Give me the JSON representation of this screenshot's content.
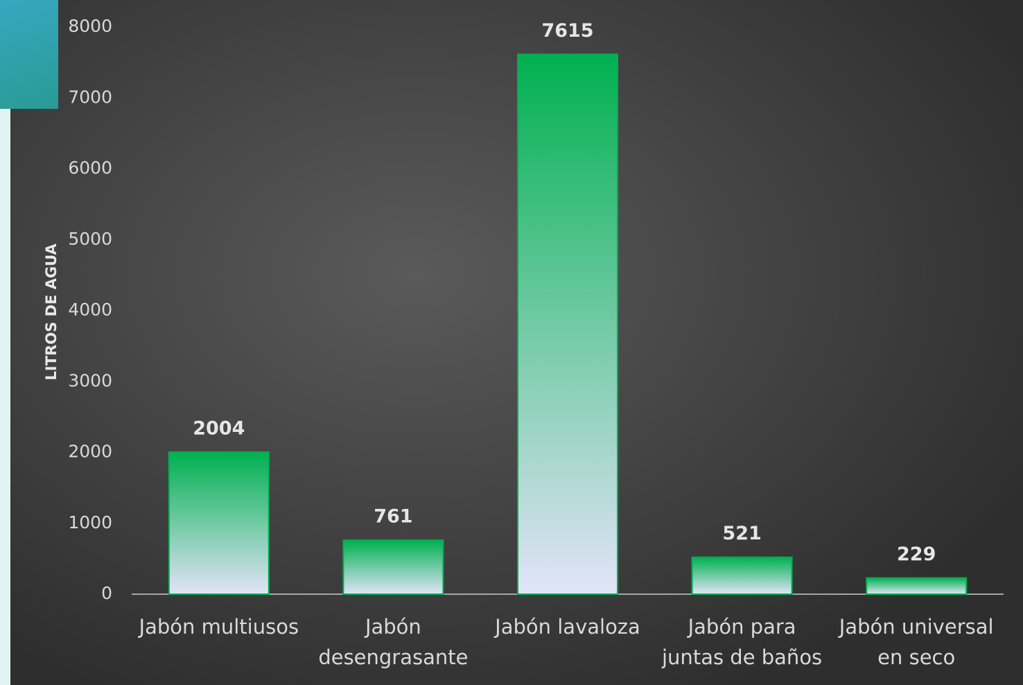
{
  "chart_data": {
    "type": "bar",
    "y_axis_label": "LITROS DE AGUA",
    "categories": [
      "Jabón multiusos",
      "Jabón desengrasante",
      "Jabón lavaloza",
      "Jabón para juntas de baños",
      "Jabón universal en seco"
    ],
    "values": [
      2004,
      761,
      7615,
      521,
      229
    ],
    "color": "#00b050",
    "ylim": [
      0,
      8000
    ],
    "yticks": [
      0,
      1000,
      2000,
      3000,
      4000,
      5000,
      6000,
      7000,
      8000
    ],
    "grid": false
  }
}
